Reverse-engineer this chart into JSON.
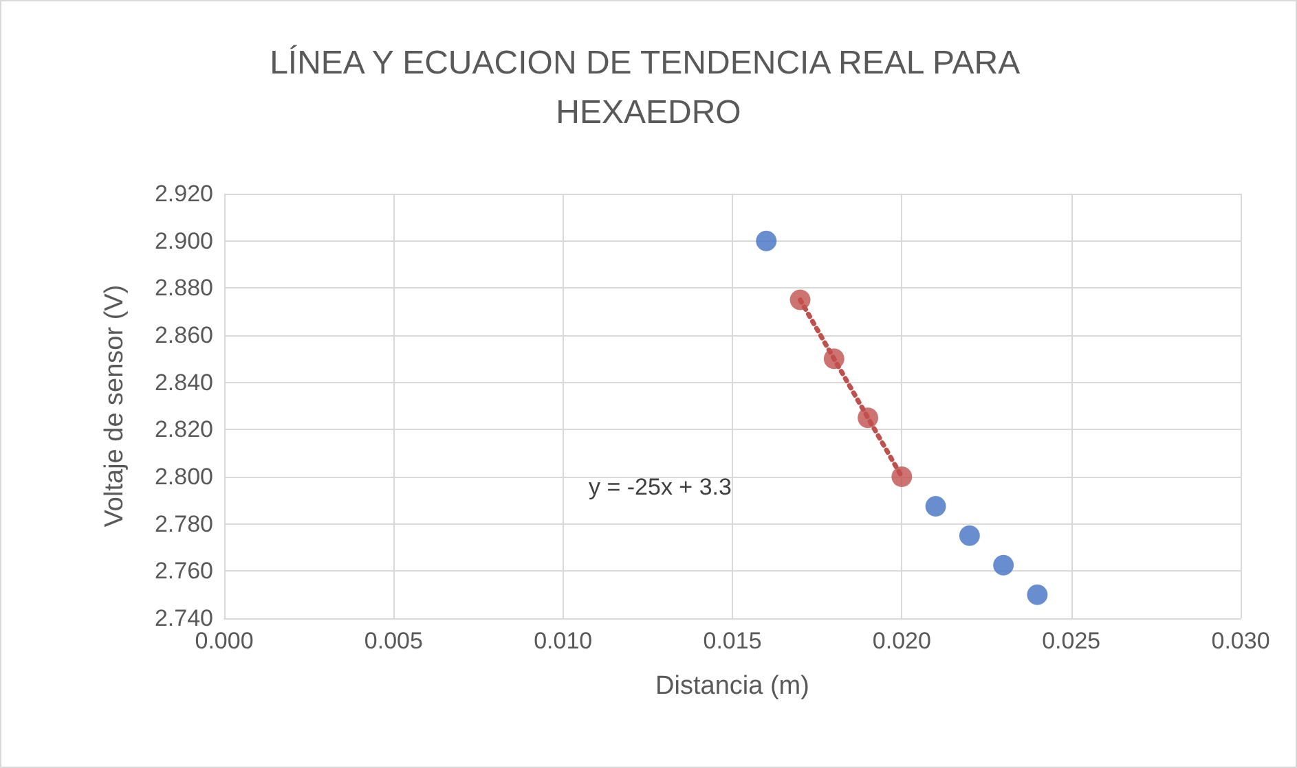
{
  "chart_data": {
    "type": "scatter",
    "title": "LÍNEA Y ECUACION DE TENDENCIA REAL PARA HEXAEDRO",
    "xlabel": "Distancia (m)",
    "ylabel": "Voltaje de sensor (V)",
    "xlim": [
      0,
      0.03
    ],
    "ylim": [
      2.74,
      2.92
    ],
    "xticks": [
      {
        "value": 0,
        "label": "0.000"
      },
      {
        "value": 0.005,
        "label": "0.005"
      },
      {
        "value": 0.01,
        "label": "0.010"
      },
      {
        "value": 0.015,
        "label": "0.015"
      },
      {
        "value": 0.02,
        "label": "0.020"
      },
      {
        "value": 0.025,
        "label": "0.025"
      },
      {
        "value": 0.03,
        "label": "0.030"
      }
    ],
    "yticks": [
      {
        "value": 2.74,
        "label": "2.740"
      },
      {
        "value": 2.76,
        "label": "2.760"
      },
      {
        "value": 2.78,
        "label": "2.780"
      },
      {
        "value": 2.8,
        "label": "2.800"
      },
      {
        "value": 2.82,
        "label": "2.820"
      },
      {
        "value": 2.84,
        "label": "2.840"
      },
      {
        "value": 2.86,
        "label": "2.860"
      },
      {
        "value": 2.88,
        "label": "2.880"
      },
      {
        "value": 2.9,
        "label": "2.900"
      },
      {
        "value": 2.92,
        "label": "2.920"
      }
    ],
    "grid": true,
    "marker": "circle",
    "series": [
      {
        "color": "#4472c4",
        "x": [
          0.016,
          0.021,
          0.022,
          0.023,
          0.024
        ],
        "values": [
          2.9,
          2.7875,
          2.775,
          2.7625,
          2.75
        ]
      },
      {
        "type": "line",
        "color": "#c0504d",
        "marker": "none",
        "line_style": "dotted",
        "x": [
          0.017,
          0.02
        ],
        "values": [
          2.875,
          2.8
        ]
      },
      {
        "color": "#c0504d",
        "x": [
          0.017,
          0.018,
          0.019,
          0.02
        ],
        "values": [
          2.875,
          2.85,
          2.825,
          2.8
        ]
      }
    ],
    "annotations": [
      "y = -25x + 3.3"
    ]
  }
}
